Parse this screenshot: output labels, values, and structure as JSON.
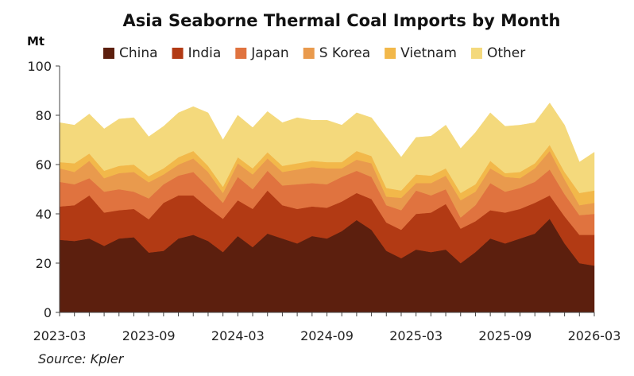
{
  "chart_data": {
    "type": "area",
    "stacked": true,
    "title": "Asia Seaborne Thermal Coal Imports by Month",
    "ylabel": "Mt",
    "ylim": [
      0,
      100
    ],
    "yticks": [
      0,
      20,
      40,
      60,
      80,
      100
    ],
    "x_start": "2023-03",
    "xticks": [
      "2023-03",
      "2023-09",
      "2024-03",
      "2024-09",
      "2025-03",
      "2025-09",
      "2026-03"
    ],
    "legend_position": "top",
    "grid": false,
    "source": "Source: Kpler",
    "x": [
      "2023-03",
      "2023-04",
      "2023-05",
      "2023-06",
      "2023-07",
      "2023-08",
      "2023-09",
      "2023-10",
      "2023-11",
      "2023-12",
      "2024-01",
      "2024-02",
      "2024-03",
      "2024-04",
      "2024-05",
      "2024-06",
      "2024-07",
      "2024-08",
      "2024-09",
      "2024-10",
      "2024-11",
      "2024-12",
      "2025-01",
      "2025-02",
      "2025-03",
      "2025-04",
      "2025-05",
      "2025-06",
      "2025-07",
      "2025-08",
      "2025-09",
      "2025-10",
      "2025-11",
      "2025-12",
      "2026-01",
      "2026-02",
      "2026-03"
    ],
    "series": [
      {
        "name": "China",
        "color": "#5c1f0e",
        "values": [
          29.5,
          29,
          30,
          27,
          30,
          30.5,
          24.3,
          25,
          30,
          31.5,
          29,
          24.5,
          31,
          26.5,
          32,
          30,
          28,
          31,
          30,
          33,
          37.5,
          33.5,
          25,
          22,
          25.5,
          24.5,
          25.5,
          20,
          24.5,
          30,
          28,
          30,
          32,
          38,
          28,
          20,
          19
        ]
      },
      {
        "name": "India",
        "color": "#b23a14",
        "values": [
          13.5,
          14.5,
          17.5,
          13.5,
          11.5,
          11.5,
          13.5,
          19.5,
          17.5,
          16,
          13.5,
          13.5,
          14.5,
          15.5,
          17.5,
          13.5,
          14,
          12,
          12.5,
          12,
          11,
          12.5,
          11.5,
          11.5,
          14.5,
          16,
          18.5,
          14,
          12.5,
          11.5,
          12.5,
          12,
          12.5,
          9.5,
          11,
          11.5,
          12.5
        ]
      },
      {
        "name": "Japan",
        "color": "#e0733f",
        "values": [
          10,
          8.5,
          7,
          8.5,
          8.5,
          7,
          8.5,
          7.5,
          8,
          9.5,
          8.5,
          6.5,
          9.5,
          8,
          8,
          8,
          10,
          9.5,
          9.5,
          10,
          9,
          9,
          7,
          8,
          9.5,
          7,
          6,
          4.5,
          6.5,
          11,
          8.5,
          8.5,
          8.5,
          10.5,
          9,
          8,
          8.5
        ]
      },
      {
        "name": "S Korea",
        "color": "#e99a4d",
        "values": [
          5.5,
          5,
          7,
          5.5,
          6.5,
          8,
          6.5,
          4,
          4.5,
          5.5,
          6,
          4,
          5.5,
          6,
          5,
          5.5,
          6,
          6.5,
          6.5,
          3.5,
          4.5,
          5.5,
          3.5,
          5,
          3,
          5,
          5.5,
          7,
          5.5,
          6,
          6,
          4,
          5.5,
          7.5,
          6,
          4,
          4.5
        ]
      },
      {
        "name": "Vietnam",
        "color": "#f2b84a",
        "values": [
          2.5,
          3.5,
          3,
          3,
          3,
          3,
          2.5,
          2.5,
          3,
          3,
          2.5,
          2.5,
          2.5,
          2.5,
          2.5,
          2.5,
          2.5,
          2.5,
          2.5,
          2.5,
          3.5,
          3,
          3.5,
          3,
          3.5,
          3,
          3,
          3,
          3,
          3,
          1.5,
          2.5,
          2,
          2.5,
          3,
          5,
          5
        ]
      },
      {
        "name": "Other",
        "color": "#f4d97c",
        "values": [
          16,
          15.5,
          16,
          17,
          19,
          19,
          16,
          17,
          18,
          18,
          21.5,
          19,
          17,
          16.5,
          16.5,
          17.5,
          18.5,
          16.5,
          17,
          15,
          15.5,
          15.5,
          20.5,
          13.5,
          15,
          16,
          17.5,
          18,
          21,
          19.5,
          19,
          19,
          16.5,
          17,
          19,
          12.5,
          15.5
        ]
      }
    ]
  }
}
